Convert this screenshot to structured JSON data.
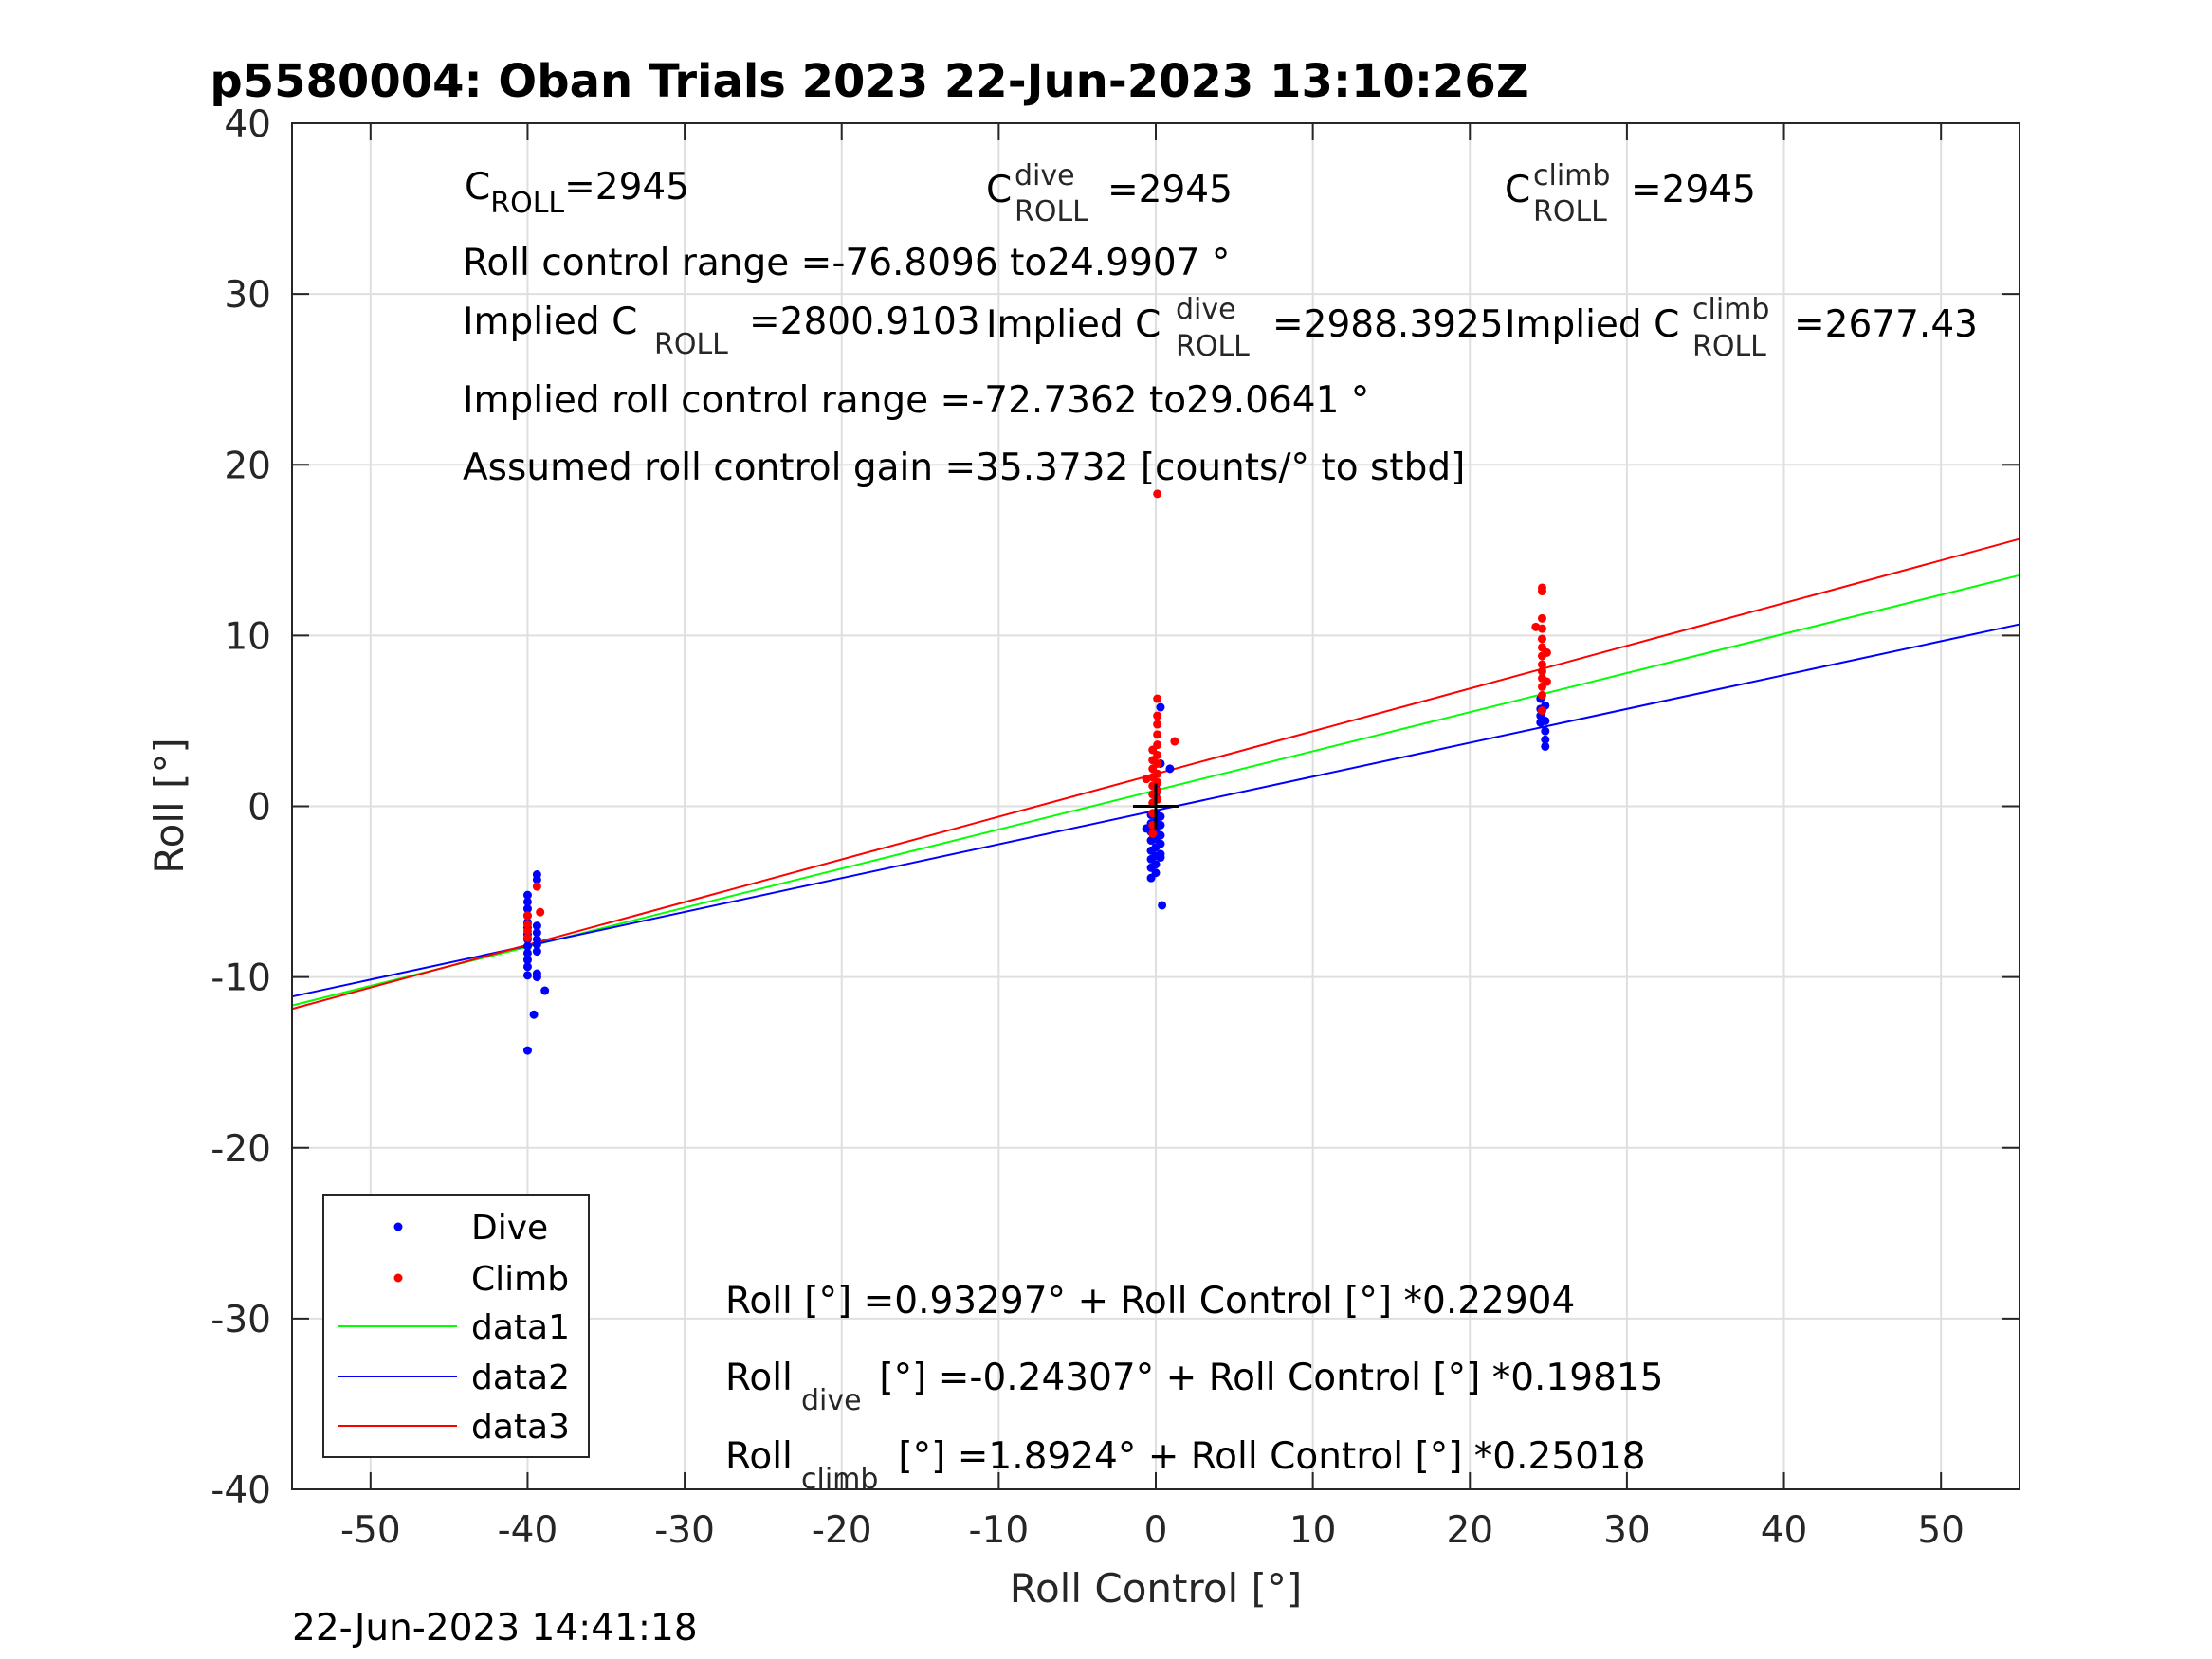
{
  "chart_data": {
    "type": "scatter",
    "title": "p5580004: Oban Trials 2023 22-Jun-2023 13:10:26Z",
    "xlabel": "Roll Control [°]",
    "ylabel": "Roll [°]",
    "xlim": [
      -55,
      55
    ],
    "ylim": [
      -40,
      40
    ],
    "grid": true,
    "legend_position": "bottom-left",
    "xticks": [
      "-50",
      "-40",
      "-30",
      "-20",
      "-10",
      "0",
      "10",
      "20",
      "30",
      "40",
      "50"
    ],
    "yticks": [
      "-40",
      "-30",
      "-20",
      "-10",
      "0",
      "10",
      "20",
      "30",
      "40"
    ],
    "legend": [
      "Dive",
      "Climb",
      "data1",
      "data2",
      "data3"
    ],
    "colors": {
      "dive": "#0000ff",
      "climb": "#ff0000",
      "data1": "#00ff00",
      "data2": "#0000ff",
      "data3": "#ff0000"
    },
    "series": [
      {
        "name": "Dive",
        "marker": "dot",
        "color": "#0000ff",
        "points": [
          [
            -40,
            -5.2
          ],
          [
            -40,
            -5.6
          ],
          [
            -40,
            -6.0
          ],
          [
            -40,
            -6.4
          ],
          [
            -40,
            -6.8
          ],
          [
            -40,
            -7.1
          ],
          [
            -40,
            -7.5
          ],
          [
            -40,
            -7.8
          ],
          [
            -40,
            -8.2
          ],
          [
            -40,
            -8.6
          ],
          [
            -40,
            -9.0
          ],
          [
            -40,
            -9.4
          ],
          [
            -40,
            -9.9
          ],
          [
            -40,
            -14.3
          ],
          [
            -39.4,
            -4.0
          ],
          [
            -39.4,
            -4.3
          ],
          [
            -39.4,
            -7.0
          ],
          [
            -39.4,
            -7.4
          ],
          [
            -39.4,
            -7.8
          ],
          [
            -39.4,
            -8.1
          ],
          [
            -39.4,
            -8.5
          ],
          [
            -39.4,
            -9.8
          ],
          [
            -39.4,
            -10.0
          ],
          [
            -39.6,
            -12.2
          ],
          [
            -38.9,
            -10.8
          ],
          [
            -0.3,
            -0.5
          ],
          [
            -0.3,
            -1.0
          ],
          [
            -0.3,
            -1.5
          ],
          [
            -0.3,
            -2.0
          ],
          [
            -0.3,
            -2.6
          ],
          [
            -0.3,
            -3.1
          ],
          [
            -0.3,
            -3.6
          ],
          [
            -0.3,
            -4.2
          ],
          [
            0.0,
            -0.4
          ],
          [
            0.0,
            -0.9
          ],
          [
            0.0,
            -1.4
          ],
          [
            0.0,
            -1.9
          ],
          [
            0.0,
            -2.4
          ],
          [
            0.0,
            -2.9
          ],
          [
            0.0,
            -3.4
          ],
          [
            0.0,
            -3.9
          ],
          [
            0.0,
            0.6
          ],
          [
            0.0,
            1.2
          ],
          [
            0.3,
            -0.6
          ],
          [
            0.3,
            -1.1
          ],
          [
            0.3,
            -1.7
          ],
          [
            0.3,
            -2.2
          ],
          [
            0.3,
            -2.8
          ],
          [
            0.3,
            -3.0
          ],
          [
            0.3,
            2.5
          ],
          [
            0.3,
            5.8
          ],
          [
            0.4,
            -5.8
          ],
          [
            0.9,
            2.2
          ],
          [
            -0.6,
            -1.3
          ],
          [
            24.5,
            5.7
          ],
          [
            24.5,
            5.3
          ],
          [
            24.5,
            4.9
          ],
          [
            24.5,
            6.3
          ],
          [
            24.8,
            5.0
          ],
          [
            24.8,
            4.4
          ],
          [
            24.8,
            3.9
          ],
          [
            24.8,
            3.5
          ],
          [
            24.8,
            5.9
          ]
        ]
      },
      {
        "name": "Climb",
        "marker": "dot",
        "color": "#ff0000",
        "points": [
          [
            -40,
            -6.4
          ],
          [
            -40,
            -6.9
          ],
          [
            -40,
            -7.3
          ],
          [
            -40,
            -7.7
          ],
          [
            -39.4,
            -4.7
          ],
          [
            -39.2,
            -6.2
          ],
          [
            -0.2,
            0.2
          ],
          [
            -0.2,
            0.7
          ],
          [
            -0.2,
            1.2
          ],
          [
            -0.2,
            1.7
          ],
          [
            -0.2,
            2.2
          ],
          [
            -0.2,
            2.7
          ],
          [
            -0.2,
            3.3
          ],
          [
            -0.2,
            -0.4
          ],
          [
            -0.2,
            -1.1
          ],
          [
            -0.2,
            -1.6
          ],
          [
            0.1,
            0.4
          ],
          [
            0.1,
            0.9
          ],
          [
            0.1,
            1.4
          ],
          [
            0.1,
            1.9
          ],
          [
            0.1,
            2.5
          ],
          [
            0.1,
            3.0
          ],
          [
            0.1,
            3.6
          ],
          [
            0.1,
            4.2
          ],
          [
            0.1,
            4.8
          ],
          [
            0.1,
            5.3
          ],
          [
            0.1,
            6.3
          ],
          [
            0.1,
            18.3
          ],
          [
            -0.6,
            1.6
          ],
          [
            1.2,
            3.8
          ],
          [
            24.2,
            10.5
          ],
          [
            24.6,
            12.8
          ],
          [
            24.6,
            12.6
          ],
          [
            24.6,
            11.0
          ],
          [
            24.6,
            10.4
          ],
          [
            24.6,
            9.8
          ],
          [
            24.6,
            9.3
          ],
          [
            24.6,
            8.8
          ],
          [
            24.6,
            8.3
          ],
          [
            24.6,
            7.9
          ],
          [
            24.6,
            7.5
          ],
          [
            24.6,
            7.0
          ],
          [
            24.6,
            6.5
          ],
          [
            24.6,
            5.6
          ],
          [
            24.9,
            7.3
          ],
          [
            24.9,
            9.0
          ]
        ]
      },
      {
        "name": "data1",
        "type": "line",
        "color": "#00ff00",
        "x": [
          -55,
          55
        ],
        "y": [
          -11.664,
          13.53
        ]
      },
      {
        "name": "data2",
        "type": "line",
        "color": "#0000ff",
        "x": [
          -55,
          55
        ],
        "y": [
          -11.141,
          10.655
        ]
      },
      {
        "name": "data3",
        "type": "line",
        "color": "#ff0000",
        "x": [
          -55,
          55
        ],
        "y": [
          -11.867,
          15.652
        ]
      }
    ],
    "marker_cross": [
      0,
      0
    ]
  },
  "annotations": {
    "c_roll_base": "C",
    "c_roll_sub": "ROLL",
    "c_roll_val": "=2945",
    "c_dive_base": "C",
    "c_dive_sup": "dive",
    "c_dive_sub": "ROLL",
    "c_dive_val": "=2945",
    "c_climb_base": "C",
    "c_climb_sup": "climb",
    "c_climb_sub": "ROLL",
    "c_climb_val": "=2945",
    "range_text": "Roll control range =-76.8096 to24.9907 °",
    "implied_base": "Implied C",
    "implied_sub": "ROLL",
    "implied_val": "=2800.9103",
    "implied_dive_base": "Implied C",
    "implied_dive_sup": "dive",
    "implied_dive_sub": "ROLL",
    "implied_dive_val": "=2988.3925",
    "implied_climb_base": "Implied C",
    "implied_climb_sup": "climb",
    "implied_climb_sub": "ROLL",
    "implied_climb_val": "=2677.43",
    "implied_range": "Implied roll control range =-72.7362 to29.0641 °",
    "gain": "Assumed roll control gain =35.3732 [counts/° to stbd]",
    "eq_all": "Roll [°] =0.93297° + Roll Control [°] *0.22904",
    "eq_dive_base": "Roll",
    "eq_dive_sub": "dive",
    "eq_dive_rest": " [°] =-0.24307° + Roll Control [°] *0.19815",
    "eq_climb_base": "Roll",
    "eq_climb_sub": "climb",
    "eq_climb_rest": " [°] =1.8924° + Roll Control [°] *0.25018"
  },
  "timestamp": "22-Jun-2023 14:41:18"
}
